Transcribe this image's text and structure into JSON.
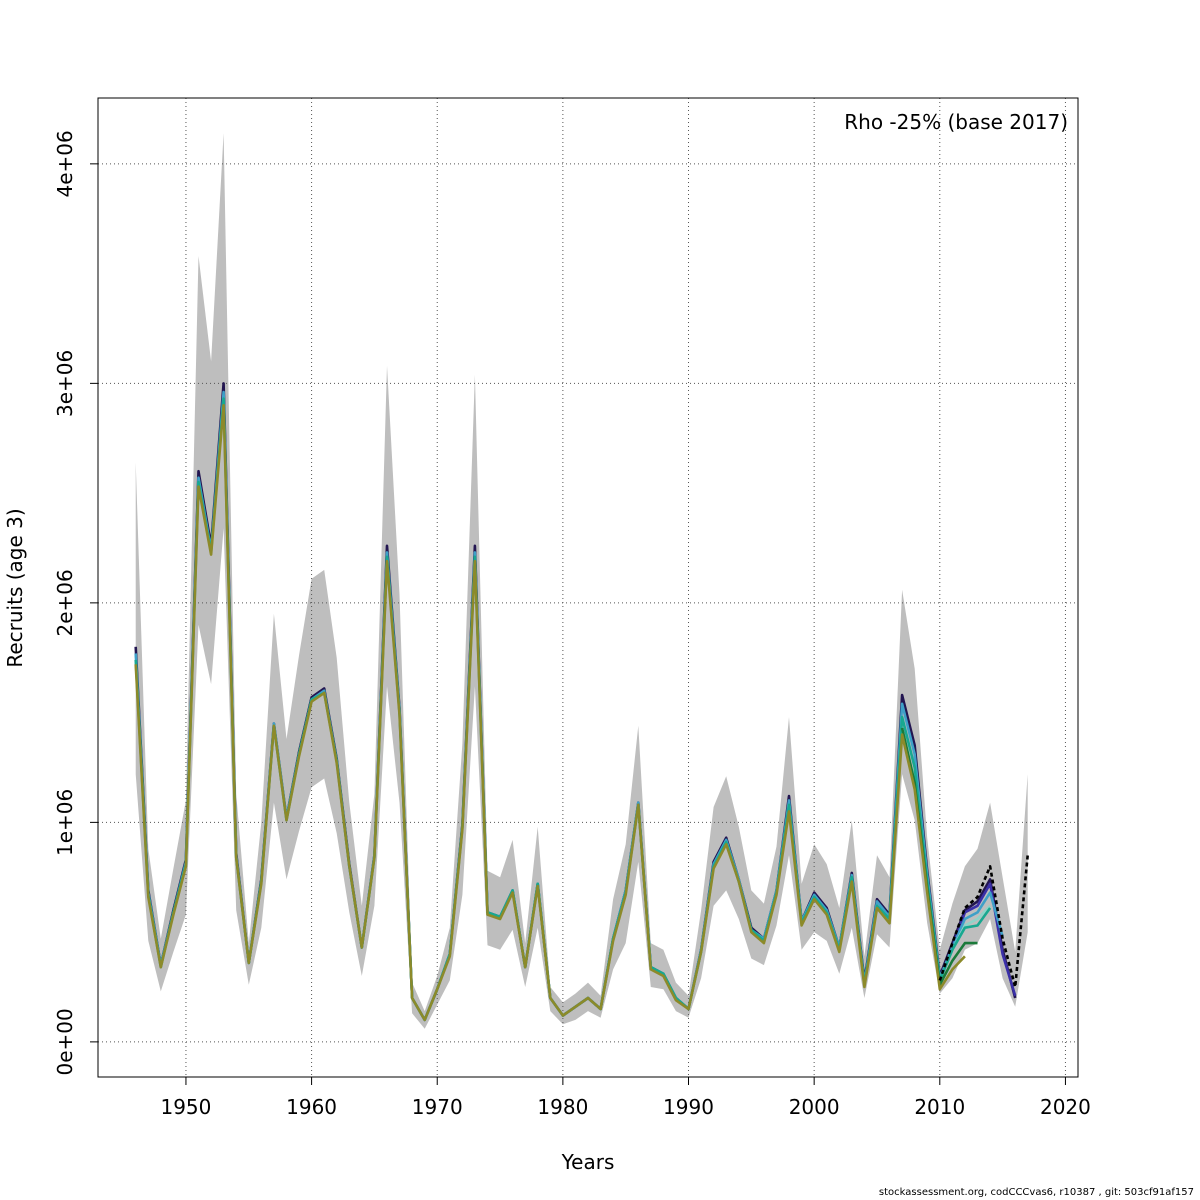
{
  "chart_data": {
    "type": "line",
    "annotation": "Rho -25% (base 2017)",
    "xlabel": "Years",
    "ylabel": "Recruits (age 3)",
    "xlim": [
      1943,
      2021
    ],
    "ylim": [
      -160000,
      4300000
    ],
    "x_ticks": [
      1950,
      1960,
      1970,
      1980,
      1990,
      2000,
      2010,
      2020
    ],
    "x_tick_labels": [
      "1950",
      "1960",
      "1970",
      "1980",
      "1990",
      "2000",
      "2010",
      "2020"
    ],
    "y_ticks": [
      0,
      1000000,
      2000000,
      3000000,
      4000000
    ],
    "y_tick_labels": [
      "0e+00",
      "1e+06",
      "2e+06",
      "3e+06",
      "4e+06"
    ],
    "grid": true,
    "confidence_band": {
      "color": "#bebebe",
      "x": [
        1946,
        1947,
        1948,
        1949,
        1950,
        1951,
        1952,
        1953,
        1954,
        1955,
        1956,
        1957,
        1958,
        1959,
        1960,
        1961,
        1962,
        1963,
        1964,
        1965,
        1966,
        1967,
        1968,
        1969,
        1970,
        1971,
        1972,
        1973,
        1974,
        1975,
        1976,
        1977,
        1978,
        1979,
        1980,
        1981,
        1982,
        1983,
        1984,
        1985,
        1986,
        1987,
        1988,
        1989,
        1990,
        1991,
        1992,
        1993,
        1994,
        1995,
        1996,
        1997,
        1998,
        1999,
        2000,
        2001,
        2002,
        2003,
        2004,
        2005,
        2006,
        2007,
        2008,
        2009,
        2010,
        2011,
        2012,
        2013,
        2014,
        2015,
        2016,
        2017
      ],
      "upper": [
        2640000,
        880000,
        470000,
        790000,
        1100000,
        3580000,
        3100000,
        4140000,
        1130000,
        450000,
        1000000,
        1950000,
        1380000,
        1760000,
        2110000,
        2150000,
        1750000,
        1090000,
        620000,
        1130000,
        3080000,
        2040000,
        270000,
        140000,
        300000,
        520000,
        1360000,
        3040000,
        780000,
        750000,
        920000,
        450000,
        980000,
        250000,
        180000,
        220000,
        270000,
        210000,
        650000,
        900000,
        1440000,
        450000,
        420000,
        270000,
        210000,
        600000,
        1070000,
        1210000,
        980000,
        690000,
        630000,
        890000,
        1480000,
        720000,
        900000,
        810000,
        610000,
        1010000,
        390000,
        850000,
        750000,
        2060000,
        1700000,
        930000,
        420000,
        630000,
        800000,
        880000,
        1090000,
        750000,
        410000,
        1220000
      ],
      "lower": [
        1220000,
        460000,
        230000,
        410000,
        580000,
        1900000,
        1630000,
        2340000,
        600000,
        260000,
        520000,
        1090000,
        740000,
        960000,
        1160000,
        1200000,
        950000,
        590000,
        300000,
        620000,
        1620000,
        1090000,
        130000,
        60000,
        170000,
        280000,
        670000,
        1620000,
        440000,
        420000,
        510000,
        250000,
        520000,
        140000,
        80000,
        100000,
        140000,
        110000,
        330000,
        450000,
        820000,
        250000,
        240000,
        140000,
        110000,
        290000,
        620000,
        690000,
        560000,
        380000,
        350000,
        530000,
        850000,
        420000,
        500000,
        460000,
        310000,
        520000,
        200000,
        490000,
        430000,
        1220000,
        1010000,
        540000,
        220000,
        290000,
        420000,
        450000,
        560000,
        290000,
        160000,
        500000
      ]
    },
    "series": [
      {
        "color": "#231651",
        "x": [
          1946,
          1947,
          1948,
          1949,
          1950,
          1951,
          1952,
          1953,
          1954,
          1955,
          1956,
          1957,
          1958,
          1959,
          1960,
          1961,
          1962,
          1963,
          1964,
          1965,
          1966,
          1967,
          1968,
          1969,
          1970,
          1971,
          1972,
          1973,
          1974,
          1975,
          1976,
          1977,
          1978,
          1979,
          1980,
          1981,
          1982,
          1983,
          1984,
          1985,
          1986,
          1987,
          1988,
          1989,
          1990,
          1991,
          1992,
          1993,
          1994,
          1995,
          1996,
          1997,
          1998,
          1999,
          2000,
          2001,
          2002,
          2003,
          2004,
          2005,
          2006,
          2007,
          2008,
          2009,
          2010,
          2011,
          2012,
          2013,
          2014,
          2015,
          2016
        ],
        "values": [
          1800000,
          690000,
          350000,
          600000,
          830000,
          2600000,
          2260000,
          3000000,
          860000,
          360000,
          740000,
          1450000,
          1020000,
          1320000,
          1570000,
          1610000,
          1290000,
          810000,
          430000,
          850000,
          2260000,
          1520000,
          200000,
          100000,
          240000,
          400000,
          990000,
          2260000,
          590000,
          570000,
          690000,
          340000,
          720000,
          200000,
          120000,
          160000,
          200000,
          150000,
          470000,
          690000,
          1090000,
          340000,
          310000,
          200000,
          150000,
          420000,
          820000,
          930000,
          740000,
          520000,
          470000,
          690000,
          1120000,
          550000,
          680000,
          610000,
          430000,
          770000,
          280000,
          650000,
          580000,
          1580000,
          1350000,
          780000,
          300000,
          450000,
          600000,
          640000,
          740000,
          420000,
          200000
        ]
      },
      {
        "color": "#3a2fa8",
        "x": [
          2010,
          2011,
          2012,
          2013,
          2014,
          2015,
          2016
        ],
        "values": [
          290000,
          430000,
          590000,
          620000,
          720000,
          400000,
          210000
        ]
      },
      {
        "color": "#3ea0c8",
        "x": [
          1946,
          1947,
          1948,
          1949,
          1950,
          1951,
          1952,
          1953,
          1954,
          1955,
          1956,
          1957,
          1958,
          1959,
          1960,
          1961,
          1962,
          1963,
          1964,
          1965,
          1966,
          1967,
          1968,
          1969,
          1970,
          1971,
          1972,
          1973,
          1974,
          1975,
          1976,
          1977,
          1978,
          1979,
          1980,
          1981,
          1982,
          1983,
          1984,
          1985,
          1986,
          1987,
          1988,
          1989,
          1990,
          1991,
          1992,
          1993,
          1994,
          1995,
          1996,
          1997,
          1998,
          1999,
          2000,
          2001,
          2002,
          2003,
          2004,
          2005,
          2006,
          2007,
          2008,
          2009,
          2010,
          2011,
          2012,
          2013,
          2014,
          2015
        ],
        "values": [
          1770000,
          680000,
          350000,
          590000,
          820000,
          2570000,
          2240000,
          2960000,
          850000,
          360000,
          730000,
          1450000,
          1020000,
          1310000,
          1560000,
          1600000,
          1280000,
          800000,
          430000,
          850000,
          2230000,
          1510000,
          200000,
          100000,
          240000,
          400000,
          980000,
          2230000,
          590000,
          570000,
          690000,
          340000,
          720000,
          200000,
          120000,
          160000,
          200000,
          150000,
          470000,
          690000,
          1090000,
          340000,
          310000,
          200000,
          150000,
          420000,
          810000,
          920000,
          740000,
          510000,
          470000,
          690000,
          1100000,
          550000,
          670000,
          600000,
          430000,
          760000,
          270000,
          640000,
          570000,
          1540000,
          1310000,
          760000,
          290000,
          430000,
          560000,
          590000,
          680000,
          480000
        ]
      },
      {
        "color": "#8fd3c8",
        "x": [
          2008,
          2009,
          2010,
          2011,
          2012,
          2013,
          2014
        ],
        "values": [
          1240000,
          720000,
          280000,
          420000,
          530000,
          560000,
          620000
        ]
      },
      {
        "color": "#18a890",
        "x": [
          1946,
          1947,
          1948,
          1949,
          1950,
          1951,
          1952,
          1953,
          1954,
          1955,
          1956,
          1957,
          1958,
          1959,
          1960,
          1961,
          1962,
          1963,
          1964,
          1965,
          1966,
          1967,
          1968,
          1969,
          1970,
          1971,
          1972,
          1973,
          1974,
          1975,
          1976,
          1977,
          1978,
          1979,
          1980,
          1981,
          1982,
          1983,
          1984,
          1985,
          1986,
          1987,
          1988,
          1989,
          1990,
          1991,
          1992,
          1993,
          1994,
          1995,
          1996,
          1997,
          1998,
          1999,
          2000,
          2001,
          2002,
          2003,
          2004,
          2005,
          2006,
          2007,
          2008,
          2009,
          2010,
          2011,
          2012,
          2013,
          2014
        ],
        "values": [
          1740000,
          670000,
          340000,
          590000,
          810000,
          2550000,
          2230000,
          2930000,
          840000,
          360000,
          730000,
          1440000,
          1010000,
          1310000,
          1560000,
          1590000,
          1280000,
          800000,
          430000,
          840000,
          2210000,
          1500000,
          200000,
          100000,
          240000,
          400000,
          980000,
          2210000,
          590000,
          570000,
          690000,
          340000,
          720000,
          200000,
          120000,
          160000,
          200000,
          150000,
          470000,
          680000,
          1080000,
          340000,
          310000,
          200000,
          150000,
          410000,
          800000,
          910000,
          730000,
          510000,
          460000,
          680000,
          1080000,
          540000,
          660000,
          590000,
          420000,
          750000,
          260000,
          620000,
          560000,
          1480000,
          1250000,
          730000,
          280000,
          420000,
          520000,
          530000,
          610000
        ]
      },
      {
        "color": "#1b7a3a",
        "x": [
          2007,
          2008,
          2009,
          2010,
          2011,
          2012,
          2013
        ],
        "values": [
          1430000,
          1180000,
          700000,
          260000,
          370000,
          450000,
          450000
        ]
      },
      {
        "color": "#8c8a2a",
        "x": [
          1946,
          1947,
          1948,
          1949,
          1950,
          1951,
          1952,
          1953,
          1954,
          1955,
          1956,
          1957,
          1958,
          1959,
          1960,
          1961,
          1962,
          1963,
          1964,
          1965,
          1966,
          1967,
          1968,
          1969,
          1970,
          1971,
          1972,
          1973,
          1974,
          1975,
          1976,
          1977,
          1978,
          1979,
          1980,
          1981,
          1982,
          1983,
          1984,
          1985,
          1986,
          1987,
          1988,
          1989,
          1990,
          1991,
          1992,
          1993,
          1994,
          1995,
          1996,
          1997,
          1998,
          1999,
          2000,
          2001,
          2002,
          2003,
          2004,
          2005,
          2006,
          2007,
          2008,
          2009,
          2010,
          2011,
          2012
        ],
        "values": [
          1720000,
          660000,
          340000,
          580000,
          800000,
          2530000,
          2220000,
          2900000,
          840000,
          360000,
          720000,
          1440000,
          1010000,
          1300000,
          1550000,
          1590000,
          1270000,
          800000,
          430000,
          840000,
          2190000,
          1490000,
          200000,
          100000,
          240000,
          390000,
          970000,
          2190000,
          580000,
          560000,
          680000,
          340000,
          710000,
          200000,
          120000,
          160000,
          200000,
          150000,
          460000,
          670000,
          1080000,
          330000,
          300000,
          190000,
          150000,
          410000,
          790000,
          900000,
          730000,
          500000,
          450000,
          670000,
          1050000,
          530000,
          650000,
          580000,
          410000,
          730000,
          250000,
          610000,
          540000,
          1400000,
          1150000,
          680000,
          240000,
          330000,
          390000
        ]
      }
    ],
    "base_series": {
      "color": "#000000",
      "dashed": true,
      "x": [
        2010,
        2011,
        2012,
        2013,
        2014,
        2015,
        2016,
        2017
      ],
      "values": [
        280000,
        450000,
        610000,
        660000,
        800000,
        470000,
        250000,
        850000
      ]
    }
  },
  "footer": "stockassessment.org, codCCCvas6, r10387 , git: 503cf91af157"
}
